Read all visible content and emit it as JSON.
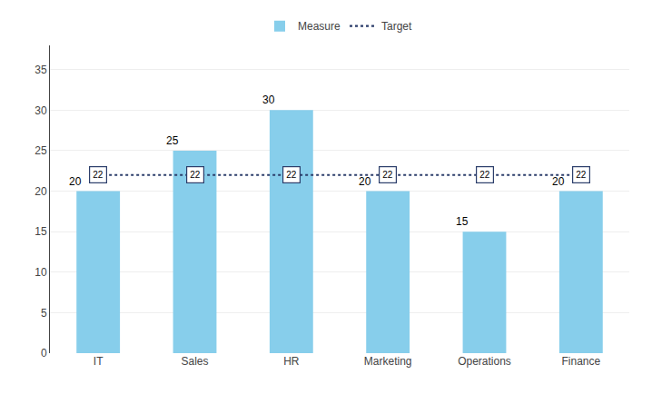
{
  "chart_data": {
    "type": "bar",
    "categories": [
      "IT",
      "Sales",
      "HR",
      "Marketing",
      "Operations",
      "Finance"
    ],
    "series": [
      {
        "name": "Measure",
        "type": "bar",
        "color": "#87CEEB",
        "values": [
          20,
          25,
          30,
          20,
          15,
          20
        ]
      },
      {
        "name": "Target",
        "type": "line",
        "color": "#2c3e6b",
        "line_style": "dotted",
        "values": [
          22,
          22,
          22,
          22,
          22,
          22
        ]
      }
    ],
    "ylim": [
      0,
      38
    ],
    "yticks": [
      0,
      5,
      10,
      15,
      20,
      25,
      30,
      35
    ],
    "grid": true,
    "legend": "top",
    "data_labels": true
  }
}
